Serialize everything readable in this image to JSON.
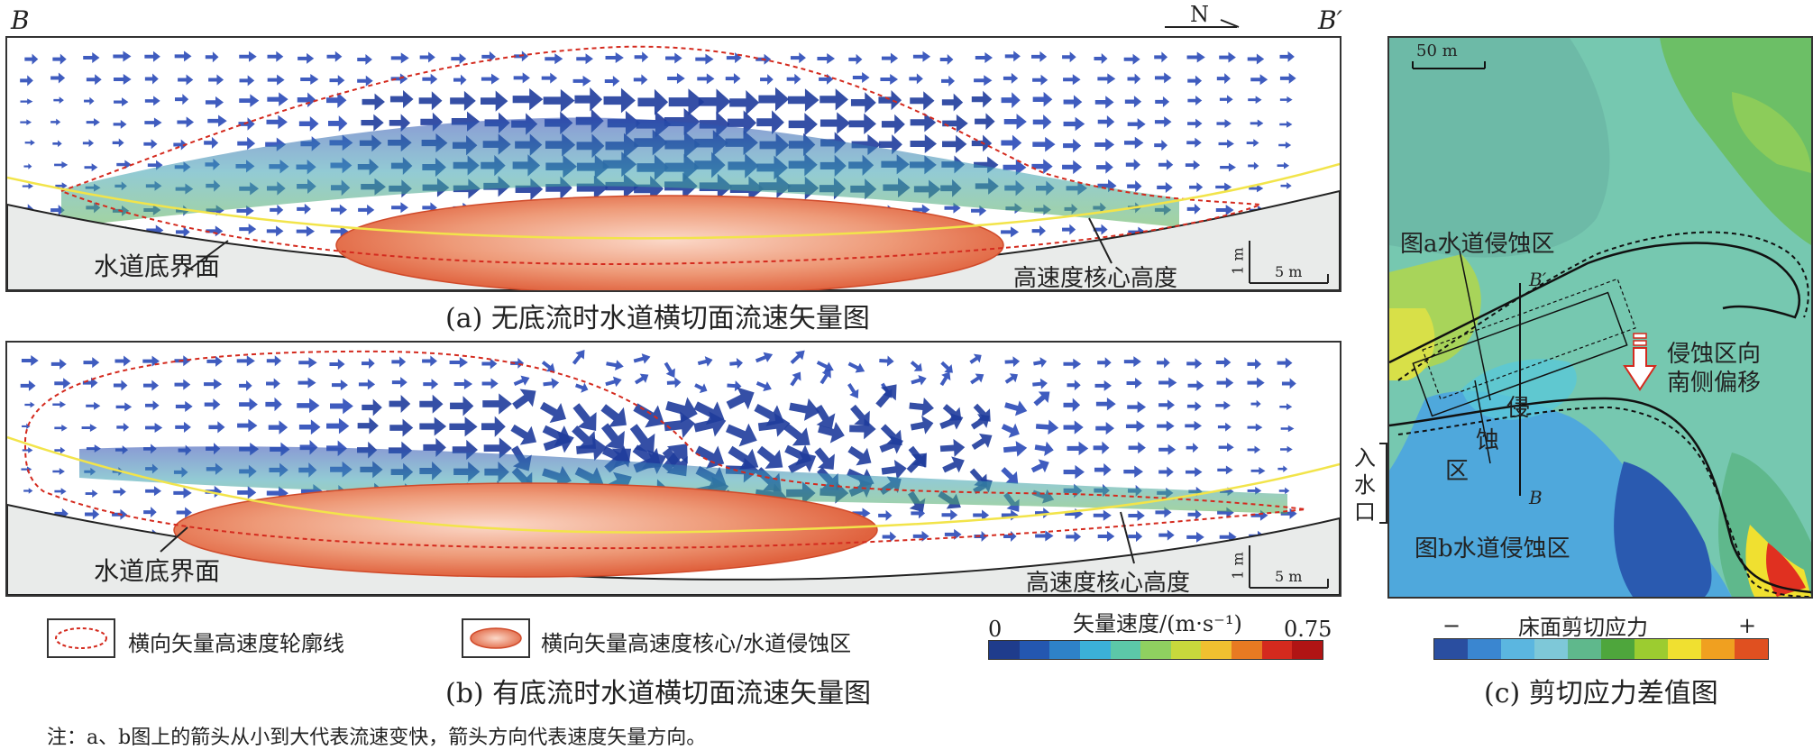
{
  "corner_labels": {
    "left": "B",
    "right": "B′"
  },
  "north_label": "N",
  "panel_a": {
    "annotation_bed": "水道底界面",
    "annotation_core": "高速度核心高度",
    "scale_v": "1 m",
    "scale_h": "5 m",
    "caption": "(a) 无底流时水道横切面流速矢量图"
  },
  "panel_b": {
    "annotation_bed": "水道底界面",
    "annotation_core": "高速度核心高度",
    "scale_v": "1 m",
    "scale_h": "5 m",
    "caption": "(b) 有底流时水道横切面流速矢量图"
  },
  "panel_c": {
    "scale": "50 m",
    "label_a_zone": "图a水道侵蚀区",
    "label_b_zone": "图b水道侵蚀区",
    "section_top": "B′",
    "section_bottom": "B",
    "erosion_chars": [
      "侵",
      "蚀",
      "区"
    ],
    "shift_label_line1": "侵蚀区向",
    "shift_label_line2": "南侧偏移",
    "inlet_label": [
      "入",
      "水",
      "口"
    ],
    "caption": "(c) 剪切应力差值图"
  },
  "legend": {
    "dashed_contour": "横向矢量高速度轮廓线",
    "core_zone": "横向矢量高速度核心/水道侵蚀区"
  },
  "velocity_colorbar": {
    "title": "矢量速度/(m·s⁻¹)",
    "min": "0",
    "max": "0.75",
    "colors": [
      "#1f3c8c",
      "#2457b0",
      "#2e82c8",
      "#3bb0d8",
      "#5cc8a8",
      "#8fd060",
      "#c8d83c",
      "#f0c030",
      "#e87a22",
      "#d42a1e",
      "#b01414"
    ]
  },
  "shear_colorbar": {
    "title": "床面剪切应力",
    "minus": "−",
    "plus": "+",
    "colors": [
      "#2a4ea0",
      "#3a86d0",
      "#5bb6e0",
      "#7ec8d8",
      "#5fb88c",
      "#4ea63c",
      "#9ccc30",
      "#f0e030",
      "#f0a020",
      "#e05020"
    ]
  },
  "note": "注：a、b图上的箭头从小到大代表流速变快，箭头方向代表速度矢量方向。"
}
